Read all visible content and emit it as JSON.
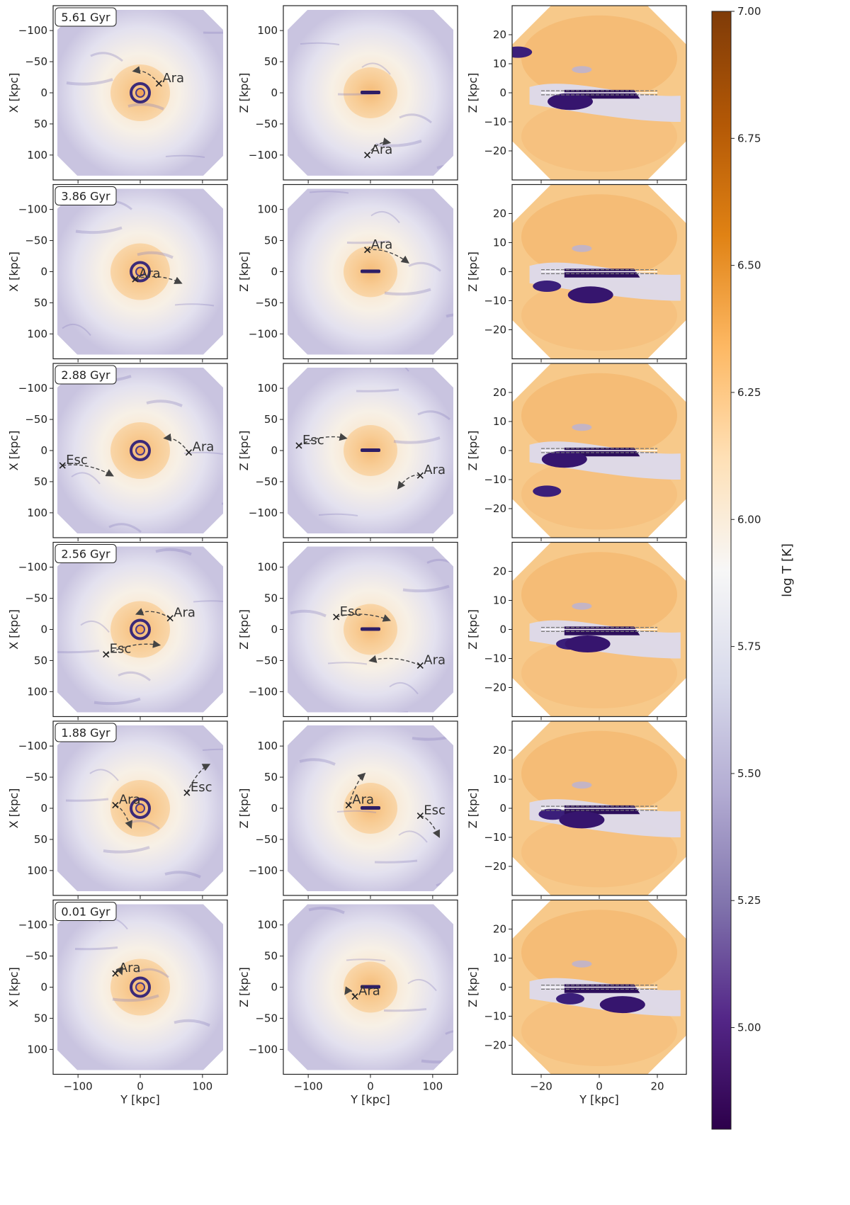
{
  "chart_data": {
    "type": "heatmap",
    "description_quantity": "gas temperature projection",
    "colorbar": {
      "label": "log T [K]",
      "range": [
        4.8,
        7.0
      ],
      "ticks": [
        "5.00",
        "5.25",
        "5.50",
        "5.75",
        "6.00",
        "6.25",
        "6.50",
        "6.75",
        "7.00"
      ],
      "tick_values": [
        5.0,
        5.25,
        5.5,
        5.75,
        6.0,
        6.25,
        6.5,
        6.75,
        7.0
      ],
      "colors": [
        "#2d004b",
        "#542788",
        "#8073ac",
        "#b2abd2",
        "#d8daeb",
        "#f7f7f7",
        "#fee0b6",
        "#fdb863",
        "#e08214",
        "#b35806",
        "#7f3b08"
      ]
    },
    "columns": [
      {
        "xlabel": "Y [kpc]",
        "ylabel": "X [kpc]",
        "xlim": [
          -140,
          140
        ],
        "ylim": [
          -140,
          140
        ],
        "y_inverted": true,
        "xticks": [
          -100,
          0,
          100
        ],
        "yticks": [
          -100,
          -50,
          0,
          50,
          100
        ],
        "xtick_labels": [
          "−100",
          "0",
          "100"
        ],
        "ytick_labels": [
          "−100",
          "−50",
          "0",
          "50",
          "100"
        ]
      },
      {
        "xlabel": "Y [kpc]",
        "ylabel": "Z [kpc]",
        "xlim": [
          -140,
          140
        ],
        "ylim": [
          -140,
          140
        ],
        "y_inverted": false,
        "xticks": [
          -100,
          0,
          100
        ],
        "yticks": [
          100,
          50,
          0,
          -50,
          -100
        ],
        "xtick_labels": [
          "−100",
          "0",
          "100"
        ],
        "ytick_labels": [
          "100",
          "50",
          "0",
          "−50",
          "−100"
        ]
      },
      {
        "xlabel": "Y [kpc]",
        "ylabel": "Z [kpc]",
        "xlim": [
          -30,
          30
        ],
        "ylim": [
          -30,
          30
        ],
        "y_inverted": false,
        "xticks": [
          -20,
          0,
          20
        ],
        "yticks": [
          20,
          10,
          0,
          -10,
          -20
        ],
        "xtick_labels": [
          "−20",
          "0",
          "20"
        ],
        "ytick_labels": [
          "20",
          "10",
          "0",
          "−10",
          "−20"
        ]
      }
    ],
    "rows": [
      {
        "time": "5.61 Gyr",
        "panel1": [
          {
            "name": "Ara",
            "x": 30,
            "y": -15,
            "tx": -10,
            "ty": -35
          }
        ],
        "panel2": [
          {
            "name": "Ara",
            "x": -5,
            "y": -100,
            "tx": 30,
            "ty": -80
          }
        ],
        "disk_cold": [
          -28,
          14,
          -10,
          -3
        ]
      },
      {
        "time": "3.86 Gyr",
        "panel1": [
          {
            "name": "Ara",
            "x": -8,
            "y": 12,
            "tx": 65,
            "ty": 18
          }
        ],
        "panel2": [
          {
            "name": "Ara",
            "x": -5,
            "y": 35,
            "tx": 60,
            "ty": 15
          }
        ],
        "disk_cold": [
          -18,
          -5,
          -3,
          -8
        ]
      },
      {
        "time": "2.88 Gyr",
        "panel1": [
          {
            "name": "Ara",
            "x": 78,
            "y": 3,
            "tx": 40,
            "ty": -20
          },
          {
            "name": "Esc",
            "x": -125,
            "y": 24,
            "tx": -45,
            "ty": 40
          }
        ],
        "panel2": [
          {
            "name": "Ara",
            "x": 80,
            "y": -40,
            "tx": 45,
            "ty": -60
          },
          {
            "name": "Esc",
            "x": -115,
            "y": 8,
            "tx": -40,
            "ty": 20
          }
        ],
        "disk_cold": [
          -18,
          -14,
          -12,
          -3
        ]
      },
      {
        "time": "2.56 Gyr",
        "panel1": [
          {
            "name": "Ara",
            "x": 48,
            "y": -18,
            "tx": -5,
            "ty": -25
          },
          {
            "name": "Esc",
            "x": -55,
            "y": 40,
            "tx": 30,
            "ty": 25
          }
        ],
        "panel2": [
          {
            "name": "Ara",
            "x": 80,
            "y": -58,
            "tx": 0,
            "ty": -50
          },
          {
            "name": "Esc",
            "x": -55,
            "y": 20,
            "tx": 30,
            "ty": 15
          }
        ],
        "disk_cold": [
          -10,
          -5,
          -4,
          -5
        ]
      },
      {
        "time": "1.88 Gyr",
        "panel1": [
          {
            "name": "Ara",
            "x": -40,
            "y": -5,
            "tx": -15,
            "ty": 30
          },
          {
            "name": "Esc",
            "x": 75,
            "y": -25,
            "tx": 110,
            "ty": -70
          }
        ],
        "panel2": [
          {
            "name": "Ara",
            "x": -35,
            "y": 5,
            "tx": -10,
            "ty": 55
          },
          {
            "name": "Esc",
            "x": 80,
            "y": -12,
            "tx": 110,
            "ty": -45
          }
        ],
        "disk_cold": [
          -16,
          -2,
          -6,
          -4
        ]
      },
      {
        "time": "0.01 Gyr",
        "panel1": [
          {
            "name": "Ara",
            "x": -40,
            "y": -22,
            "tx": -30,
            "ty": -22
          }
        ],
        "panel2": [
          {
            "name": "Ara",
            "x": -25,
            "y": -15,
            "tx": -40,
            "ty": -10
          }
        ],
        "disk_cold": [
          -10,
          -4,
          8,
          -6
        ]
      }
    ]
  }
}
